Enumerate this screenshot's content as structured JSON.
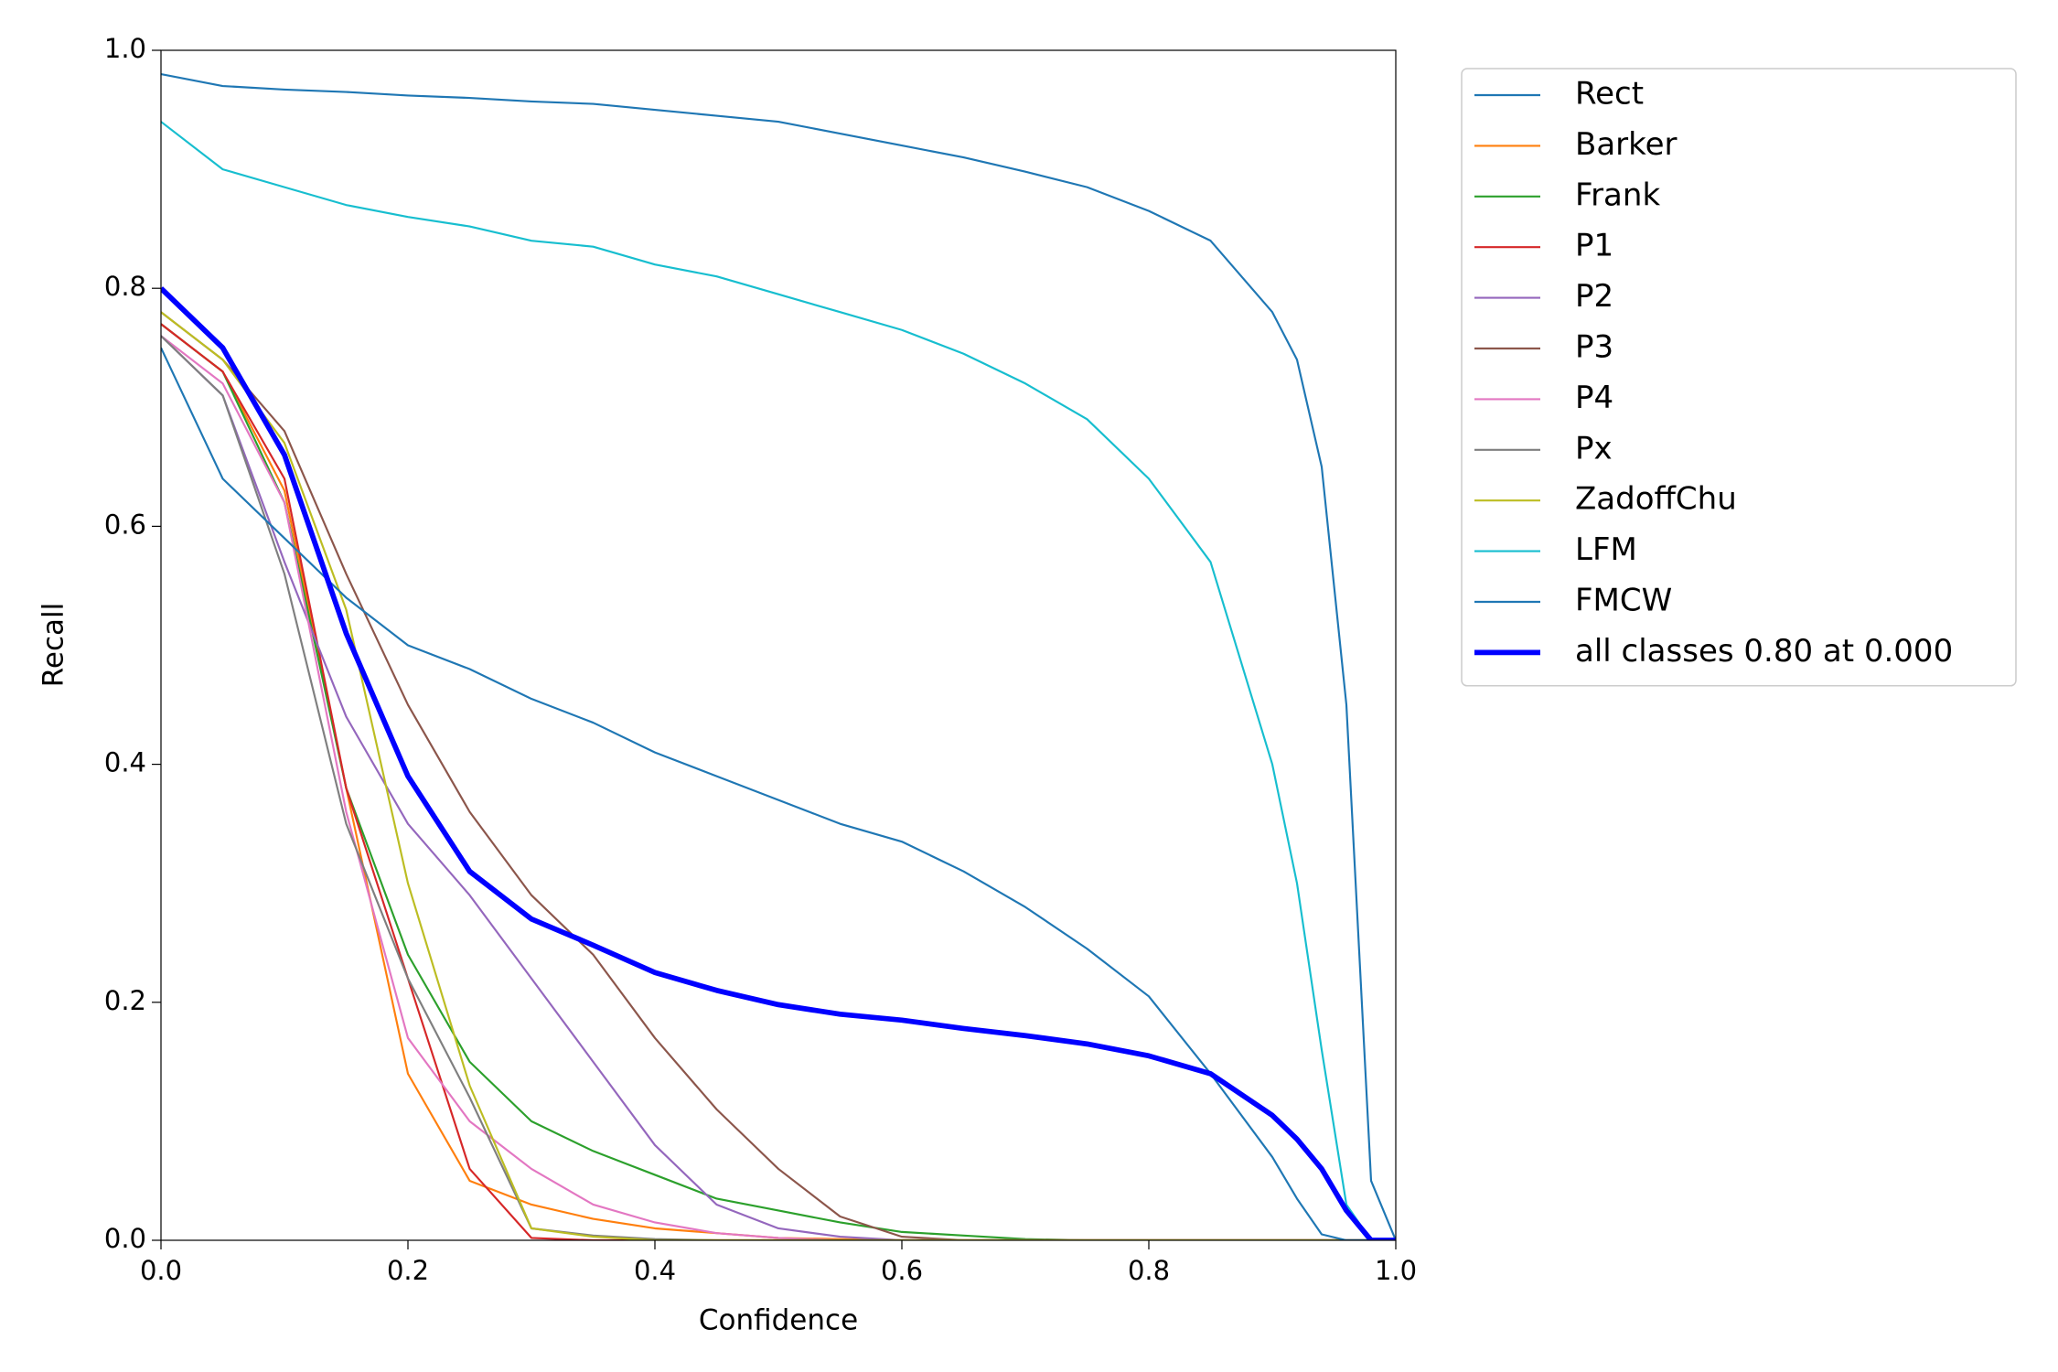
{
  "chart_data": {
    "type": "line",
    "xlabel": "Confidence",
    "ylabel": "Recall",
    "x": [
      0,
      0.05,
      0.1,
      0.15,
      0.2,
      0.25,
      0.3,
      0.35,
      0.4,
      0.45,
      0.5,
      0.55,
      0.6,
      0.65,
      0.7,
      0.75,
      0.8,
      0.85,
      0.9,
      0.92,
      0.94,
      0.96,
      0.98,
      1.0
    ],
    "xlim": [
      0,
      1
    ],
    "ylim": [
      0,
      1
    ],
    "xticks": [
      {
        "value": 0,
        "label": "0.0"
      },
      0.2,
      0.4,
      0.6,
      0.8,
      {
        "value": 1,
        "label": "1.0"
      }
    ],
    "yticks": [
      {
        "value": 0,
        "label": "0.0"
      },
      0.2,
      0.4,
      0.6,
      0.8,
      {
        "value": 1,
        "label": "1.0"
      }
    ],
    "grid": false,
    "legend": "outside upper right",
    "series": [
      {
        "name": "Rect",
        "color": "#1f77b4",
        "linewidth": 1.5,
        "values": [
          0.98,
          0.97,
          0.967,
          0.965,
          0.962,
          0.96,
          0.957,
          0.955,
          0.95,
          0.945,
          0.94,
          0.93,
          0.92,
          0.91,
          0.898,
          0.885,
          0.865,
          0.84,
          0.78,
          0.74,
          0.65,
          0.45,
          0.05,
          0
        ]
      },
      {
        "name": "Barker",
        "color": "#ff7f0e",
        "linewidth": 1.5,
        "values": [
          0.77,
          0.73,
          0.63,
          0.38,
          0.14,
          0.05,
          0.03,
          0.018,
          0.01,
          0.006,
          0.002,
          0.001,
          0,
          0,
          0,
          0,
          0,
          0,
          0,
          0,
          0,
          0,
          0,
          0
        ]
      },
      {
        "name": "Frank",
        "color": "#2ca02c",
        "linewidth": 1.5,
        "values": [
          0.77,
          0.73,
          0.62,
          0.38,
          0.24,
          0.15,
          0.1,
          0.075,
          0.055,
          0.035,
          0.025,
          0.015,
          0.007,
          0.004,
          0.001,
          0,
          0,
          0,
          0,
          0,
          0,
          0,
          0,
          0
        ]
      },
      {
        "name": "P1",
        "color": "#d62728",
        "linewidth": 1.5,
        "values": [
          0.77,
          0.73,
          0.64,
          0.38,
          0.22,
          0.06,
          0.002,
          0,
          0,
          0,
          0,
          0,
          0,
          0,
          0,
          0,
          0,
          0,
          0,
          0,
          0,
          0,
          0,
          0
        ]
      },
      {
        "name": "P2",
        "color": "#9467bd",
        "linewidth": 1.5,
        "values": [
          0.76,
          0.71,
          0.57,
          0.44,
          0.35,
          0.29,
          0.22,
          0.15,
          0.08,
          0.03,
          0.01,
          0.003,
          0,
          0,
          0,
          0,
          0,
          0,
          0,
          0,
          0,
          0,
          0,
          0
        ]
      },
      {
        "name": "P3",
        "color": "#8c564b",
        "linewidth": 1.5,
        "values": [
          0.78,
          0.74,
          0.68,
          0.56,
          0.45,
          0.36,
          0.29,
          0.24,
          0.17,
          0.11,
          0.06,
          0.02,
          0.003,
          0,
          0,
          0,
          0,
          0,
          0,
          0,
          0,
          0,
          0,
          0
        ]
      },
      {
        "name": "P4",
        "color": "#e377c2",
        "linewidth": 1.5,
        "values": [
          0.76,
          0.72,
          0.62,
          0.36,
          0.17,
          0.1,
          0.06,
          0.03,
          0.015,
          0.006,
          0.002,
          0,
          0,
          0,
          0,
          0,
          0,
          0,
          0,
          0,
          0,
          0,
          0,
          0
        ]
      },
      {
        "name": "Px",
        "color": "#7f7f7f",
        "linewidth": 1.5,
        "values": [
          0.76,
          0.71,
          0.56,
          0.35,
          0.22,
          0.12,
          0.01,
          0.004,
          0.001,
          0,
          0,
          0,
          0,
          0,
          0,
          0,
          0,
          0,
          0,
          0,
          0,
          0,
          0,
          0
        ]
      },
      {
        "name": "ZadoffChu",
        "color": "#bcbd22",
        "linewidth": 1.5,
        "values": [
          0.78,
          0.74,
          0.67,
          0.53,
          0.3,
          0.13,
          0.01,
          0.003,
          0,
          0,
          0,
          0,
          0,
          0,
          0,
          0,
          0,
          0,
          0,
          0,
          0,
          0,
          0,
          0
        ]
      },
      {
        "name": "LFM",
        "color": "#17becf",
        "linewidth": 1.5,
        "values": [
          0.94,
          0.9,
          0.885,
          0.87,
          0.86,
          0.852,
          0.84,
          0.835,
          0.82,
          0.81,
          0.795,
          0.78,
          0.765,
          0.745,
          0.72,
          0.69,
          0.64,
          0.57,
          0.4,
          0.3,
          0.16,
          0.03,
          0,
          0
        ]
      },
      {
        "name": "FMCW",
        "color": "#1f77b4",
        "linewidth": 1.5,
        "values": [
          0.75,
          0.64,
          0.59,
          0.54,
          0.5,
          0.48,
          0.455,
          0.435,
          0.41,
          0.39,
          0.37,
          0.35,
          0.335,
          0.31,
          0.28,
          0.245,
          0.205,
          0.14,
          0.07,
          0.035,
          0.005,
          0,
          0,
          0
        ]
      },
      {
        "name": "all classes 0.80 at 0.000",
        "color": "#0000ff",
        "linewidth": 4,
        "values": [
          0.8,
          0.75,
          0.66,
          0.51,
          0.39,
          0.31,
          0.27,
          0.248,
          0.225,
          0.21,
          0.198,
          0.19,
          0.185,
          0.178,
          0.172,
          0.165,
          0.155,
          0.14,
          0.105,
          0.085,
          0.06,
          0.025,
          0,
          0
        ]
      }
    ]
  }
}
